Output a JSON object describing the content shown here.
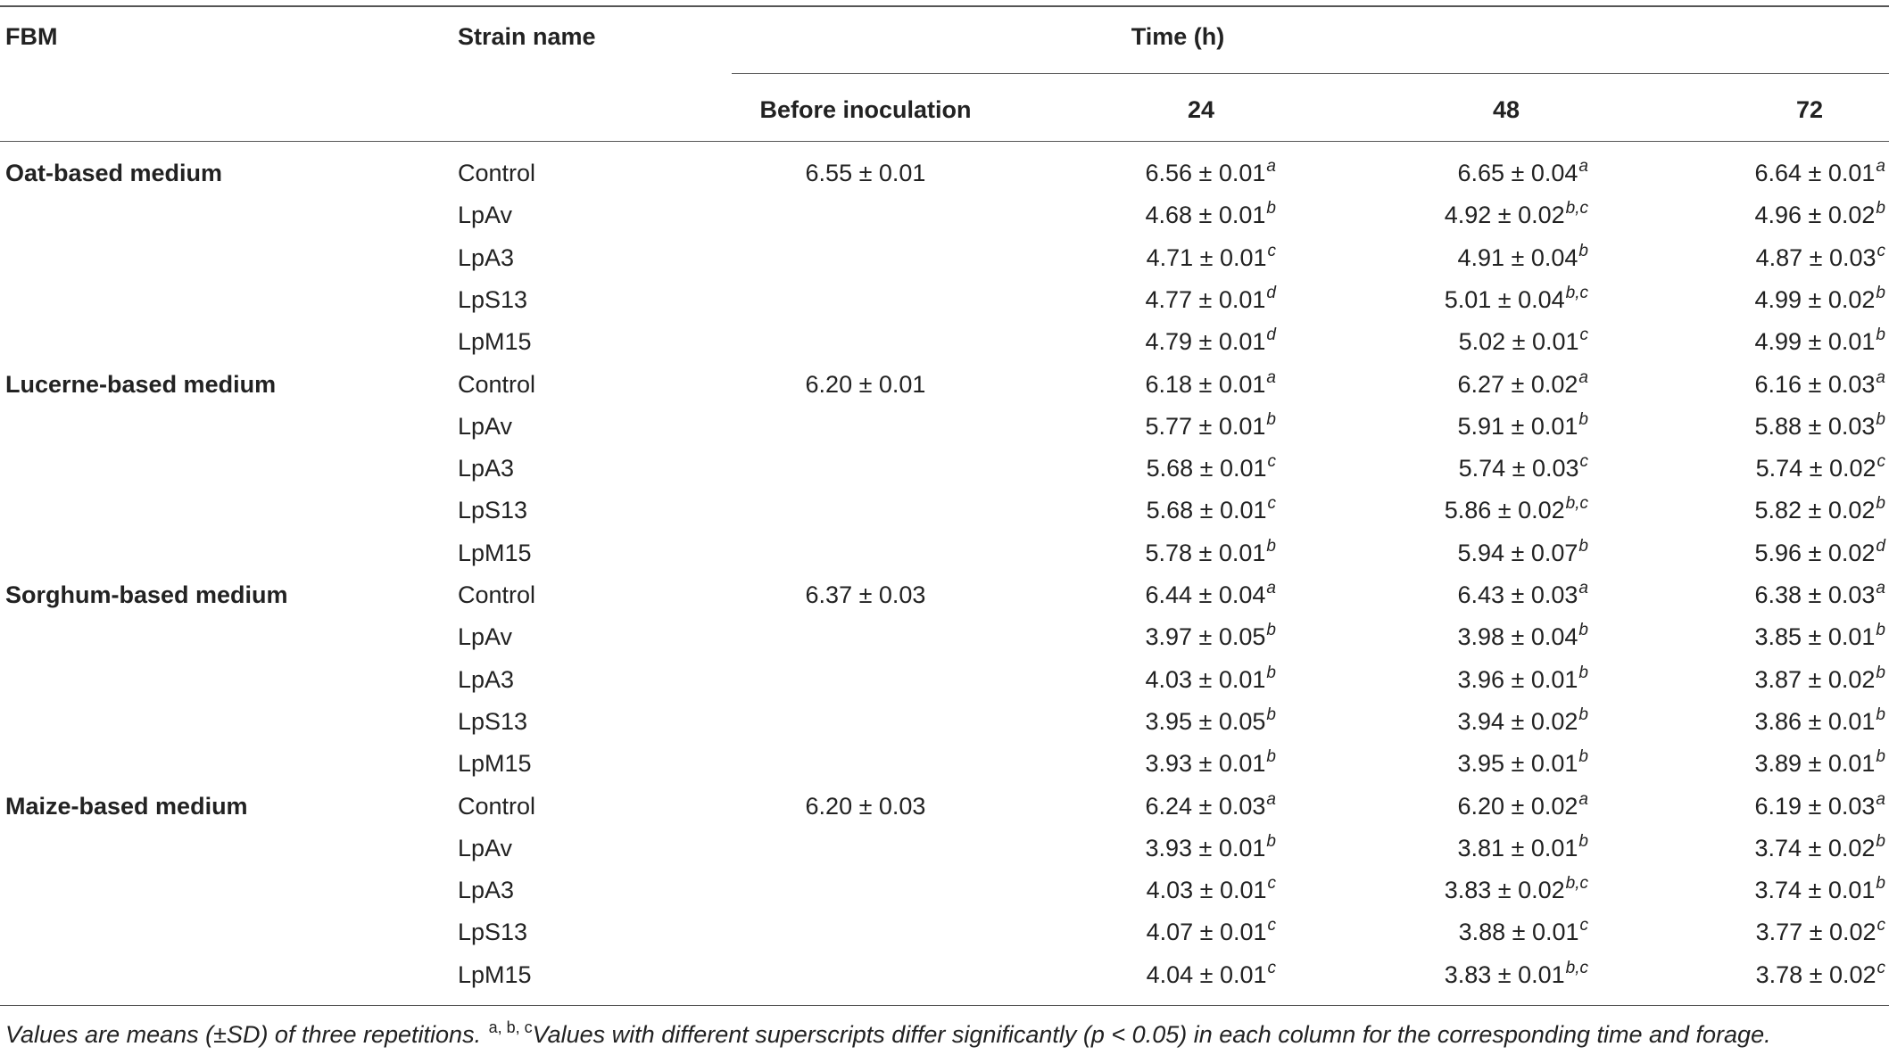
{
  "headers": {
    "fbm": "FBM",
    "strain": "Strain name",
    "time": "Time (h)",
    "before": "Before inoculation",
    "t24": "24",
    "t48": "48",
    "t72": "72"
  },
  "groups": [
    {
      "medium": "Oat-based medium",
      "before": "6.55 ± 0.01",
      "rows": [
        {
          "strain": "Control",
          "v24": "6.56 ± 0.01",
          "s24": "a",
          "v48": "6.65 ± 0.04",
          "s48": "a",
          "v72": "6.64 ± 0.01",
          "s72": "a"
        },
        {
          "strain": "LpAv",
          "v24": "4.68 ± 0.01",
          "s24": "b",
          "v48": "4.92 ± 0.02",
          "s48": "b,c",
          "v72": "4.96 ± 0.02",
          "s72": "b"
        },
        {
          "strain": "LpA3",
          "v24": "4.71 ± 0.01",
          "s24": "c",
          "v48": "4.91 ± 0.04",
          "s48": "b",
          "v72": "4.87 ± 0.03",
          "s72": "c"
        },
        {
          "strain": "LpS13",
          "v24": "4.77 ± 0.01",
          "s24": "d",
          "v48": "5.01 ± 0.04",
          "s48": "b,c",
          "v72": "4.99 ± 0.02",
          "s72": "b"
        },
        {
          "strain": "LpM15",
          "v24": "4.79 ± 0.01",
          "s24": "d",
          "v48": "5.02 ± 0.01",
          "s48": "c",
          "v72": "4.99 ± 0.01",
          "s72": "b"
        }
      ]
    },
    {
      "medium": "Lucerne-based medium",
      "before": "6.20 ± 0.01",
      "rows": [
        {
          "strain": "Control",
          "v24": "6.18 ± 0.01",
          "s24": "a",
          "v48": "6.27 ± 0.02",
          "s48": "a",
          "v72": "6.16 ± 0.03",
          "s72": "a"
        },
        {
          "strain": "LpAv",
          "v24": "5.77 ± 0.01",
          "s24": "b",
          "v48": "5.91 ± 0.01",
          "s48": "b",
          "v72": "5.88 ± 0.03",
          "s72": "b"
        },
        {
          "strain": "LpA3",
          "v24": "5.68 ± 0.01",
          "s24": "c",
          "v48": "5.74 ± 0.03",
          "s48": "c",
          "v72": "5.74 ± 0.02",
          "s72": "c"
        },
        {
          "strain": "LpS13",
          "v24": "5.68 ± 0.01",
          "s24": "c",
          "v48": "5.86 ± 0.02",
          "s48": "b,c",
          "v72": "5.82 ± 0.02",
          "s72": "b"
        },
        {
          "strain": "LpM15",
          "v24": "5.78 ± 0.01",
          "s24": "b",
          "v48": "5.94 ± 0.07",
          "s48": "b",
          "v72": "5.96 ± 0.02",
          "s72": "d"
        }
      ]
    },
    {
      "medium": "Sorghum-based medium",
      "before": "6.37 ± 0.03",
      "rows": [
        {
          "strain": "Control",
          "v24": "6.44 ± 0.04",
          "s24": "a",
          "v48": "6.43 ± 0.03",
          "s48": "a",
          "v72": "6.38 ± 0.03",
          "s72": "a"
        },
        {
          "strain": "LpAv",
          "v24": "3.97 ± 0.05",
          "s24": "b",
          "v48": "3.98 ± 0.04",
          "s48": "b",
          "v72": "3.85 ± 0.01",
          "s72": "b"
        },
        {
          "strain": "LpA3",
          "v24": "4.03 ± 0.01",
          "s24": "b",
          "v48": "3.96 ± 0.01",
          "s48": "b",
          "v72": "3.87 ± 0.02",
          "s72": "b"
        },
        {
          "strain": "LpS13",
          "v24": "3.95 ± 0.05",
          "s24": "b",
          "v48": "3.94 ± 0.02",
          "s48": "b",
          "v72": "3.86 ± 0.01",
          "s72": "b"
        },
        {
          "strain": "LpM15",
          "v24": "3.93 ± 0.01",
          "s24": "b",
          "v48": "3.95 ± 0.01",
          "s48": "b",
          "v72": "3.89 ± 0.01",
          "s72": "b"
        }
      ]
    },
    {
      "medium": "Maize-based medium",
      "before": "6.20 ± 0.03",
      "rows": [
        {
          "strain": "Control",
          "v24": "6.24 ± 0.03",
          "s24": "a",
          "v48": "6.20 ± 0.02",
          "s48": "a",
          "v72": "6.19 ± 0.03",
          "s72": "a"
        },
        {
          "strain": "LpAv",
          "v24": "3.93 ± 0.01",
          "s24": "b",
          "v48": "3.81 ± 0.01",
          "s48": "b",
          "v72": "3.74 ± 0.02",
          "s72": "b"
        },
        {
          "strain": "LpA3",
          "v24": "4.03 ± 0.01",
          "s24": "c",
          "v48": "3.83 ± 0.02",
          "s48": "b,c",
          "v72": "3.74 ± 0.01",
          "s72": "b"
        },
        {
          "strain": "LpS13",
          "v24": "4.07 ± 0.01",
          "s24": "c",
          "v48": "3.88 ± 0.01",
          "s48": "c",
          "v72": "3.77 ± 0.02",
          "s72": "c"
        },
        {
          "strain": "LpM15",
          "v24": "4.04 ± 0.01",
          "s24": "c",
          "v48": "3.83 ± 0.01",
          "s48": "b,c",
          "v72": "3.78 ± 0.02",
          "s72": "c"
        }
      ]
    }
  ],
  "footnote": {
    "part1": "Values are means (±SD) of three repetitions.",
    "marks": "a, b, c",
    "part2": "Values with different superscripts differ significantly (p < 0.05) in each column for the corresponding time and forage."
  }
}
